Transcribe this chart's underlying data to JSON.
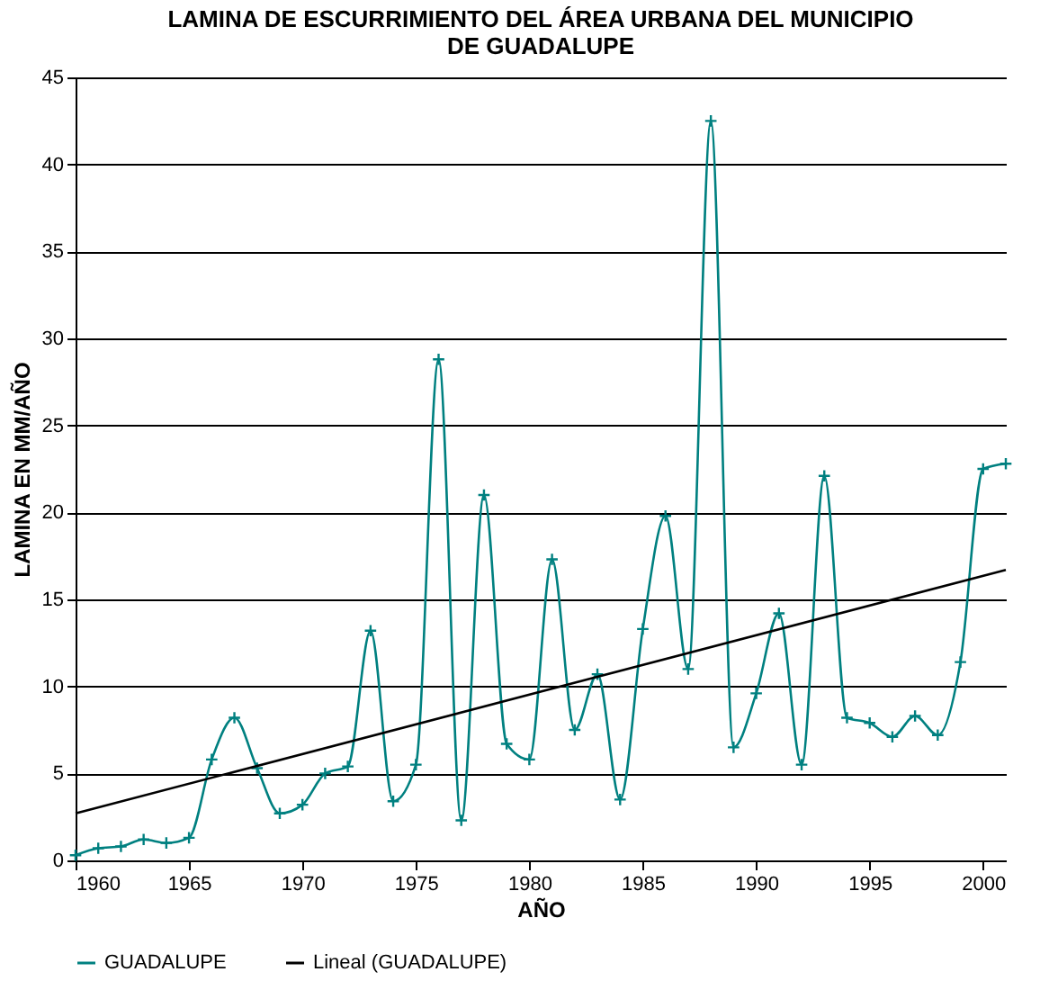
{
  "chart_data": {
    "type": "line",
    "title": [
      "LAMINA DE ESCURRIMIENTO DEL ÁREA URBANA DEL MUNICIPIO",
      "DE GUADALUPE"
    ],
    "xlabel": "AÑO",
    "ylabel": "LAMINA EN MM/AÑO",
    "x": [
      1960,
      1961,
      1962,
      1963,
      1964,
      1965,
      1966,
      1967,
      1968,
      1969,
      1970,
      1971,
      1972,
      1973,
      1974,
      1975,
      1976,
      1977,
      1978,
      1979,
      1980,
      1981,
      1982,
      1983,
      1984,
      1985,
      1986,
      1987,
      1988,
      1989,
      1990,
      1991,
      1992,
      1993,
      1994,
      1995,
      1996,
      1997,
      1998,
      1999,
      2000,
      2001
    ],
    "series": [
      {
        "name": "GUADALUPE",
        "color": "#008080",
        "marker": "cross",
        "values": [
          0.3,
          0.7,
          0.8,
          1.2,
          1.0,
          1.3,
          5.8,
          8.2,
          5.3,
          2.7,
          3.2,
          5.0,
          5.4,
          13.2,
          3.4,
          5.5,
          28.8,
          2.3,
          21.0,
          6.7,
          5.8,
          17.3,
          7.5,
          10.7,
          3.5,
          13.3,
          19.8,
          11.0,
          42.5,
          6.5,
          9.6,
          14.2,
          5.5,
          22.1,
          8.2,
          7.9,
          7.1,
          8.3,
          7.2,
          11.4,
          22.5,
          22.8
        ]
      },
      {
        "name": "Lineal (GUADALUPE)",
        "color": "#000000",
        "type": "line",
        "marker": "none",
        "x": [
          1960,
          2001
        ],
        "values": [
          2.7,
          16.7
        ]
      }
    ],
    "xlim": [
      1960,
      2001
    ],
    "xticks": [
      1960,
      1965,
      1970,
      1975,
      1980,
      1985,
      1990,
      1995,
      2000
    ],
    "ylim": [
      0,
      45
    ],
    "yticks": [
      0,
      5,
      10,
      15,
      20,
      25,
      30,
      35,
      40,
      45
    ],
    "grid": "y",
    "legend": "bottom",
    "line_style": "solid"
  }
}
